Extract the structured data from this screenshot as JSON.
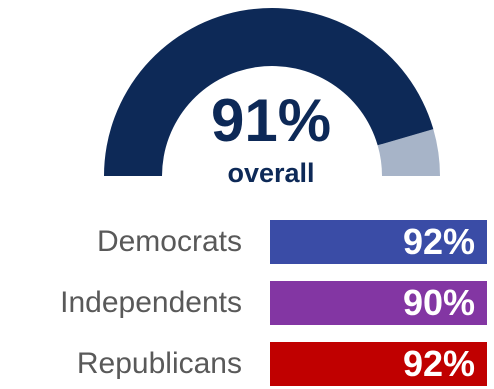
{
  "chart_data": {
    "type": "gauge",
    "overall": {
      "value": 91,
      "value_label": "91%",
      "label": "overall",
      "fill_color": "#0d2957",
      "remainder_color": "#a7b4c8"
    },
    "categories": [
      "Democrats",
      "Independents",
      "Republicans"
    ],
    "values": [
      92,
      90,
      92
    ],
    "value_labels": [
      "92%",
      "90%",
      "92%"
    ],
    "colors": [
      "#3a4ca6",
      "#8336a3",
      "#c00000"
    ]
  }
}
